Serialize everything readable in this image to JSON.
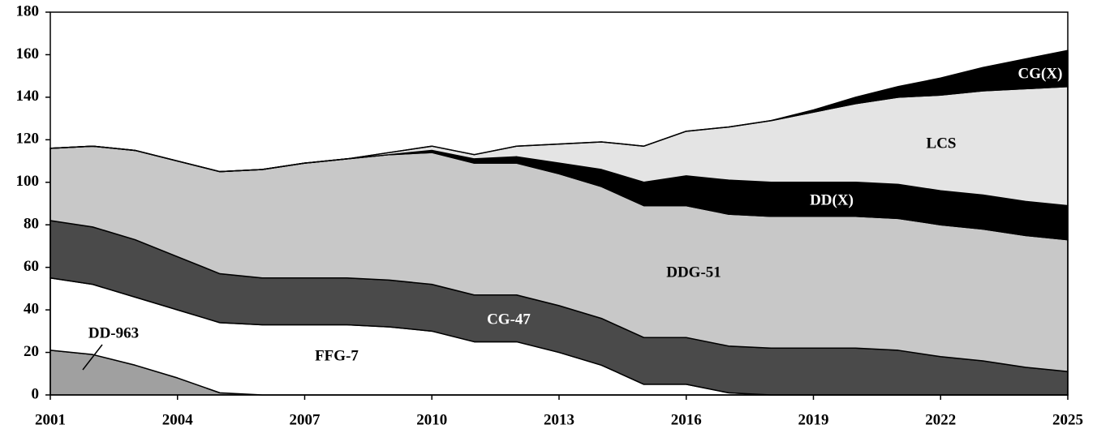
{
  "chart_data": {
    "type": "stacked_area",
    "x": [
      2001,
      2002,
      2003,
      2004,
      2005,
      2006,
      2007,
      2008,
      2009,
      2010,
      2011,
      2012,
      2013,
      2014,
      2015,
      2016,
      2017,
      2018,
      2019,
      2020,
      2021,
      2022,
      2023,
      2024,
      2025
    ],
    "series": [
      {
        "name": "DD-963",
        "color": "#a0a0a0",
        "values": [
          21,
          19,
          14,
          8,
          1,
          0,
          0,
          0,
          0,
          0,
          0,
          0,
          0,
          0,
          0,
          0,
          0,
          0,
          0,
          0,
          0,
          0,
          0,
          0,
          0
        ]
      },
      {
        "name": "FFG-7",
        "color": "#ffffff",
        "values": [
          34,
          33,
          32,
          32,
          33,
          33,
          33,
          33,
          32,
          30,
          25,
          25,
          20,
          14,
          5,
          5,
          1,
          0,
          0,
          0,
          0,
          0,
          0,
          0,
          0
        ]
      },
      {
        "name": "CG-47",
        "color": "#4a4a4a",
        "values": [
          27,
          27,
          27,
          25,
          23,
          22,
          22,
          22,
          22,
          22,
          22,
          22,
          22,
          22,
          22,
          22,
          22,
          22,
          22,
          22,
          21,
          18,
          16,
          13,
          11
        ]
      },
      {
        "name": "DDG-51",
        "color": "#c8c8c8",
        "values": [
          34,
          38,
          42,
          45,
          48,
          51,
          54,
          56,
          59,
          62,
          62,
          62,
          62,
          62,
          62,
          62,
          62,
          62,
          62,
          62,
          62,
          62,
          62,
          62,
          62
        ]
      },
      {
        "name": "DD(X)",
        "color": "#000000",
        "values": [
          0,
          0,
          0,
          0,
          0,
          0,
          0,
          0,
          0,
          1,
          2,
          3,
          5,
          8,
          11,
          14,
          16,
          16,
          16,
          16,
          16,
          16,
          16,
          16,
          16
        ]
      },
      {
        "name": "LCS",
        "color": "#e4e4e4",
        "values": [
          0,
          0,
          0,
          0,
          0,
          0,
          0,
          0,
          1,
          2,
          2,
          5,
          9,
          13,
          17,
          21,
          25,
          29,
          33,
          37,
          41,
          45,
          49,
          53,
          56
        ]
      },
      {
        "name": "CG(X)",
        "color": "#000000",
        "values": [
          0,
          0,
          0,
          0,
          0,
          0,
          0,
          0,
          0,
          0,
          0,
          0,
          0,
          0,
          0,
          0,
          0,
          0,
          1,
          3,
          5,
          8,
          11,
          14,
          17
        ]
      }
    ],
    "xlim": [
      2001,
      2025
    ],
    "xticks": [
      2001,
      2004,
      2007,
      2010,
      2013,
      2016,
      2019,
      2022,
      2025
    ],
    "ylim": [
      0,
      180
    ],
    "yticks": [
      0,
      20,
      40,
      60,
      80,
      100,
      120,
      140,
      160,
      180
    ]
  }
}
